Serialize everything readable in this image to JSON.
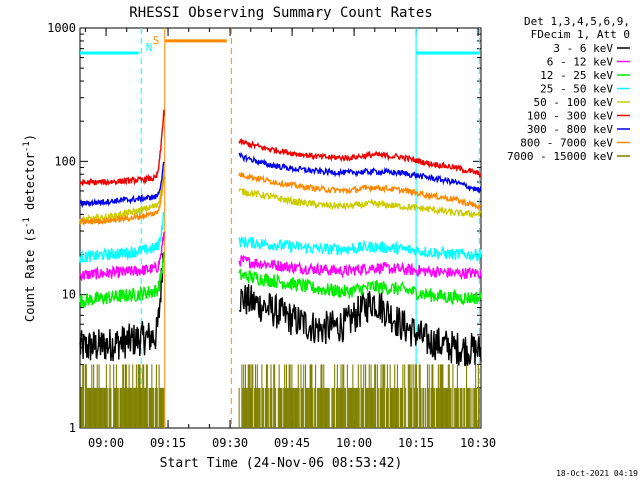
{
  "chart_data": {
    "type": "line",
    "title": "RHESSI Observing Summary Count Rates",
    "xlabel": "Start Time (24-Nov-06 08:53:42)",
    "ylabel_main": "Count Rate (s",
    "ylabel_sup1": "-1",
    "ylabel_mid": " detector",
    "ylabel_sup2": "-1",
    "ylabel_end": ")",
    "y_scale": "log",
    "ylim": [
      1,
      1000
    ],
    "xlim_minutes": [
      0,
      97
    ],
    "x_ticks": [
      {
        "label": "09:00",
        "minute": 6.3
      },
      {
        "label": "09:15",
        "minute": 21.3
      },
      {
        "label": "09:30",
        "minute": 36.3
      },
      {
        "label": "09:45",
        "minute": 51.3
      },
      {
        "label": "10:00",
        "minute": 66.3
      },
      {
        "label": "10:15",
        "minute": 81.3
      },
      {
        "label": "10:30",
        "minute": 96.3
      }
    ],
    "y_ticks": [
      {
        "label": "1",
        "value": 1
      },
      {
        "label": "10",
        "value": 10
      },
      {
        "label": "100",
        "value": 100
      },
      {
        "label": "1000",
        "value": 1000
      }
    ],
    "legend_header": [
      "Det 1,3,4,5,6,9,",
      "FDecim 1, Att 0"
    ],
    "legend_placement": "right",
    "series": [
      {
        "name": "3 - 6 keV",
        "color": "#000000"
      },
      {
        "name": "6 - 12 keV",
        "color": "#ff00ff"
      },
      {
        "name": "12 - 25 keV",
        "color": "#00ee00"
      },
      {
        "name": "25 - 50 keV",
        "color": "#00ffff"
      },
      {
        "name": "50 - 100 keV",
        "color": "#cccc00"
      },
      {
        "name": "100 - 300 keV",
        "color": "#ee0000"
      },
      {
        "name": "300 - 800 keV",
        "color": "#0000ee"
      },
      {
        "name": "800 - 7000 keV",
        "color": "#ff8800"
      },
      {
        "name": "7000 - 15000 keV",
        "color": "#808000"
      }
    ],
    "profiles": {
      "3 - 6 keV": {
        "pre": [
          4.0,
          4.2,
          4.6,
          5.0
        ],
        "post": [
          9.5,
          8.0,
          6.5,
          5.5,
          6.0,
          9.0,
          6.0,
          4.5,
          4.0,
          3.8
        ],
        "noise": 0.3
      },
      "6 - 12 keV": {
        "pre": [
          14,
          14.5,
          15,
          16
        ],
        "post": [
          18,
          17,
          16,
          15.5,
          15,
          16,
          15.5,
          15,
          14.5,
          14.5
        ],
        "noise": 0.1
      },
      "12 - 25 keV": {
        "pre": [
          9.0,
          9.5,
          10,
          11
        ],
        "post": [
          14,
          13,
          12,
          11,
          10.5,
          11.5,
          11,
          10,
          9.5,
          9.5
        ],
        "noise": 0.12
      },
      "25 - 50 keV": {
        "pre": [
          19,
          20,
          21,
          23
        ],
        "post": [
          25,
          24,
          23,
          22,
          22,
          23,
          22,
          21,
          20,
          20
        ],
        "noise": 0.1
      },
      "50 - 100 keV": {
        "pre": [
          36,
          38,
          42,
          48
        ],
        "post": [
          60,
          55,
          50,
          47,
          46,
          48,
          46,
          44,
          41,
          40
        ],
        "noise": 0.06
      },
      "100 - 300 keV": {
        "pre": [
          69,
          70,
          72,
          76
        ],
        "post": [
          140,
          125,
          115,
          108,
          106,
          112,
          108,
          97,
          90,
          80
        ],
        "noise": 0.05
      },
      "300 - 800 keV": {
        "pre": [
          48,
          50,
          52,
          55
        ],
        "post": [
          110,
          95,
          88,
          84,
          82,
          84,
          82,
          76,
          70,
          60
        ],
        "noise": 0.05
      },
      "800 - 7000 keV": {
        "pre": [
          35,
          36,
          38,
          42
        ],
        "post": [
          80,
          72,
          66,
          62,
          60,
          64,
          61,
          56,
          52,
          45
        ],
        "noise": 0.05
      }
    },
    "pre_window_minutes": [
      0,
      20.3
    ],
    "post_window_minutes": [
      38.5,
      97
    ],
    "markers": {
      "cyan_dashed_minutes": [
        14.8,
        81.3,
        96.6
      ],
      "cyan_solid_minutes": [
        81.3
      ],
      "orange_solid_minutes": [
        20.5
      ],
      "orange_dashed_minutes": [
        36.6
      ],
      "cyan_bar_1_minutes": [
        0,
        14.2
      ],
      "cyan_bar_2_minutes": [
        81.3,
        96.5
      ],
      "orange_bar_minutes": [
        20.6,
        35.5
      ],
      "top_bar_level": 650,
      "orange_bar_level": 800,
      "flare_peak": 220
    },
    "flag_labels": {
      "s": "S",
      "n": "N"
    },
    "timestamp": "18-Oct-2021 04:19"
  }
}
